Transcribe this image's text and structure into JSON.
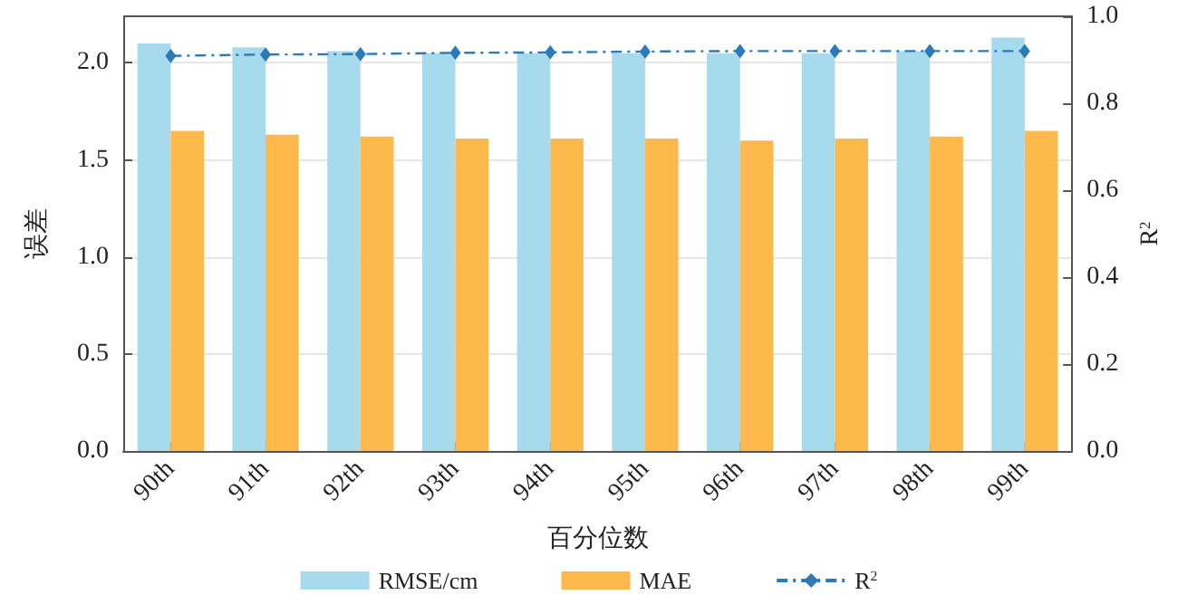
{
  "chart_data": {
    "type": "bar",
    "xlabel": "百分位数",
    "ylabel": "误差",
    "y2label": "R$^{2}$",
    "categories": [
      "90th",
      "91th",
      "92th",
      "93th",
      "94th",
      "95th",
      "96th",
      "97th",
      "98th",
      "99th"
    ],
    "series": [
      {
        "name": "RMSE/cm",
        "color": "#a8daee",
        "values": [
          2.1,
          2.08,
          2.06,
          2.05,
          2.05,
          2.05,
          2.05,
          2.05,
          2.06,
          2.13
        ]
      },
      {
        "name": "MAE",
        "color": "#fdb94b",
        "values": [
          1.65,
          1.63,
          1.62,
          1.61,
          1.61,
          1.61,
          1.6,
          1.61,
          1.62,
          1.65
        ]
      },
      {
        "name": "R$^{2}$",
        "type": "line",
        "axis": "y2",
        "color": "#2b7bba",
        "marker": "diamond",
        "line_style": "dashed",
        "values": [
          0.909,
          0.912,
          0.913,
          0.916,
          0.917,
          0.919,
          0.92,
          0.92,
          0.92,
          0.92
        ]
      }
    ],
    "ylim": [
      0,
      2.24
    ],
    "yticks": [
      {
        "value": 0,
        "label": "0.0"
      },
      0.5,
      {
        "value": 1,
        "label": "1.0"
      },
      1.5,
      {
        "value": 2,
        "label": "2.0"
      }
    ],
    "y2lim": [
      0,
      1
    ],
    "y2ticks": [
      {
        "value": 0,
        "label": "0.0"
      },
      0.2,
      0.4,
      0.6,
      0.8,
      {
        "value": 1,
        "label": "1.0"
      }
    ],
    "grid": "y",
    "legend": "bottom"
  }
}
